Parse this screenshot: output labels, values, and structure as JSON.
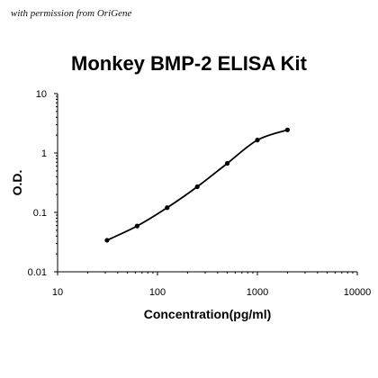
{
  "credit": "with permission from OriGene",
  "chart_data": {
    "type": "line",
    "title": "Monkey BMP-2 ELISA Kit",
    "xlabel": "Concentration(pg/ml)",
    "ylabel": "O.D.",
    "xscale": "log",
    "yscale": "log",
    "xlim": [
      10,
      10000
    ],
    "ylim": [
      0.01,
      10
    ],
    "xticks": [
      "10",
      "100",
      "1000",
      "10000"
    ],
    "yticks": [
      "0.01",
      "0.1",
      "1",
      "10"
    ],
    "grid": false,
    "legend": "none",
    "line_color": "#000000",
    "series": [
      {
        "x": [
          31.25,
          62.5,
          125,
          250,
          500,
          1000,
          2000
        ],
        "y": [
          0.034,
          0.059,
          0.12,
          0.27,
          0.67,
          1.65,
          2.45
        ]
      }
    ]
  }
}
